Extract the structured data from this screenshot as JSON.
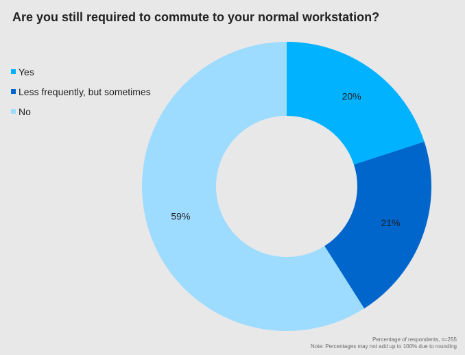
{
  "chart_data": {
    "type": "pie",
    "title": "Are you still required to commute to your normal workstation?",
    "subtitle": "",
    "legend_placement": "left",
    "slices": [
      {
        "label": "Yes",
        "value": 20,
        "display": "20%",
        "color": "#00b2ff"
      },
      {
        "label": "Less frequently, but sometimes",
        "value": 21,
        "display": "21%",
        "color": "#0066cc"
      },
      {
        "label": "No",
        "value": 59,
        "display": "59%",
        "color": "#9edcff"
      }
    ]
  },
  "footnotes": [
    "Percentage of respondents, n=255",
    "Note: Percentages may not add up to 100% due to rounding"
  ]
}
